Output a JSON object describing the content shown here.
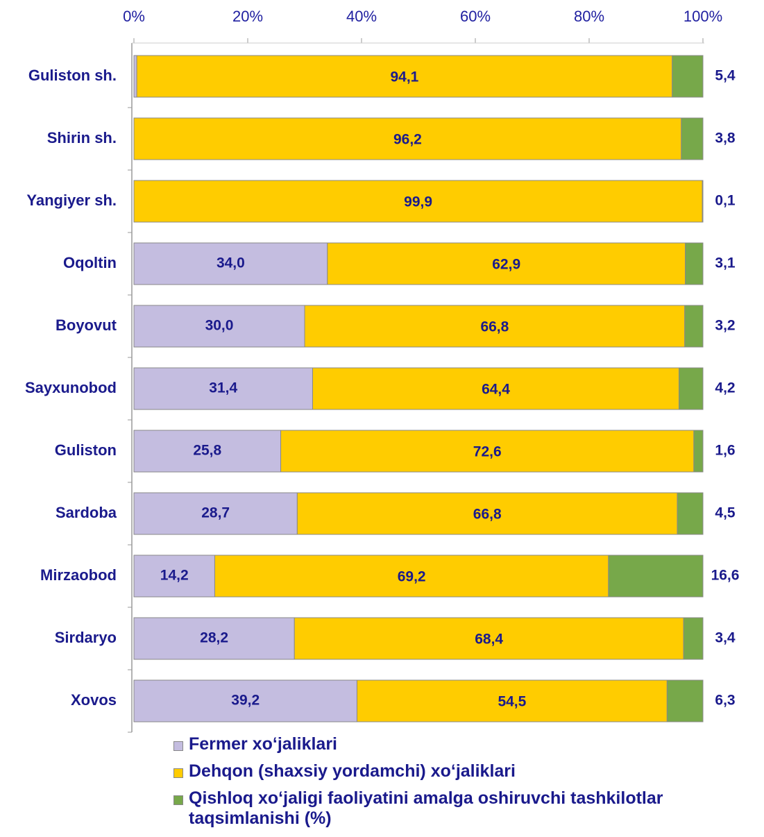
{
  "chart_data": {
    "type": "stacked-bar-horizontal",
    "categories": [
      "Guliston sh.",
      "Shirin sh.",
      "Yangiyer sh.",
      "Oqoltin",
      "Boyovut",
      "Sayxunobod",
      "Guliston",
      "Sardoba",
      "Mirzaobod",
      "Sirdaryo",
      "Xovos"
    ],
    "series": [
      {
        "name": "Fermer xo‘jaliklari",
        "color": "#c4bde0",
        "values": [
          0.5,
          0.0,
          0.0,
          34.0,
          30.0,
          31.4,
          25.8,
          28.7,
          14.2,
          28.2,
          39.2
        ],
        "value_labels": [
          "0,5",
          "0,0",
          "0,0",
          "34,0",
          "30,0",
          "31,4",
          "25,8",
          "28,7",
          "14,2",
          "28,2",
          "39,2"
        ]
      },
      {
        "name": "Dehqon (shaxsiy yordamchi) xo‘jaliklari",
        "color": "#ffcc00",
        "values": [
          94.1,
          96.2,
          99.9,
          62.9,
          66.8,
          64.4,
          72.6,
          66.8,
          69.2,
          68.4,
          54.5
        ],
        "value_labels": [
          "94,1",
          "96,2",
          "99,9",
          "62,9",
          "66,8",
          "64,4",
          "72,6",
          "66,8",
          "69,2",
          "68,4",
          "54,5"
        ]
      },
      {
        "name": "Qishloq xo‘jaligi faoliyatini amalga oshiruvchi tashkilotlar taqsimlanishi (%)",
        "color": "#77a84a",
        "values": [
          5.4,
          3.8,
          0.1,
          3.1,
          3.2,
          4.2,
          1.6,
          4.5,
          16.6,
          3.4,
          6.3
        ],
        "value_labels": [
          "5,4",
          "3,8",
          "0,1",
          "3,1",
          "3,2",
          "4,2",
          "1,6",
          "4,5",
          "16,6",
          "3,4",
          "6,3"
        ]
      }
    ],
    "xlim": [
      0,
      100
    ],
    "xticks": [
      {
        "value": 0,
        "label": "0%"
      },
      {
        "value": 20,
        "label": "20%"
      },
      {
        "value": 40,
        "label": "40%"
      },
      {
        "value": 60,
        "label": "60%"
      },
      {
        "value": 80,
        "label": "80%"
      },
      {
        "value": 100,
        "label": "100%"
      }
    ]
  }
}
